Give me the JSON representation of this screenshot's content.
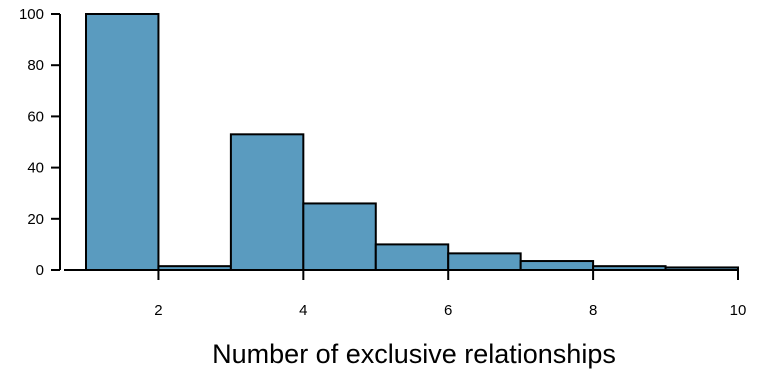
{
  "chart_data": {
    "type": "bar",
    "subtype": "histogram",
    "xlabel": "Number of exclusive relationships",
    "ylabel": "",
    "bar_color": "#5a9bbf",
    "bins": [
      {
        "x_start": 1,
        "x_end": 2,
        "count": 100
      },
      {
        "x_start": 2,
        "x_end": 3,
        "count": 1.5
      },
      {
        "x_start": 3,
        "x_end": 4,
        "count": 53
      },
      {
        "x_start": 4,
        "x_end": 5,
        "count": 26
      },
      {
        "x_start": 5,
        "x_end": 6,
        "count": 10
      },
      {
        "x_start": 6,
        "x_end": 7,
        "count": 6.5
      },
      {
        "x_start": 7,
        "x_end": 8,
        "count": 3.5
      },
      {
        "x_start": 8,
        "x_end": 9,
        "count": 1.5
      },
      {
        "x_start": 9,
        "x_end": 10,
        "count": 1
      }
    ],
    "xlim": [
      1,
      10
    ],
    "ylim": [
      0,
      100
    ],
    "x_ticks": [
      2,
      4,
      6,
      8,
      10
    ],
    "y_ticks": [
      0,
      20,
      40,
      60,
      80,
      100
    ],
    "grid": false
  }
}
